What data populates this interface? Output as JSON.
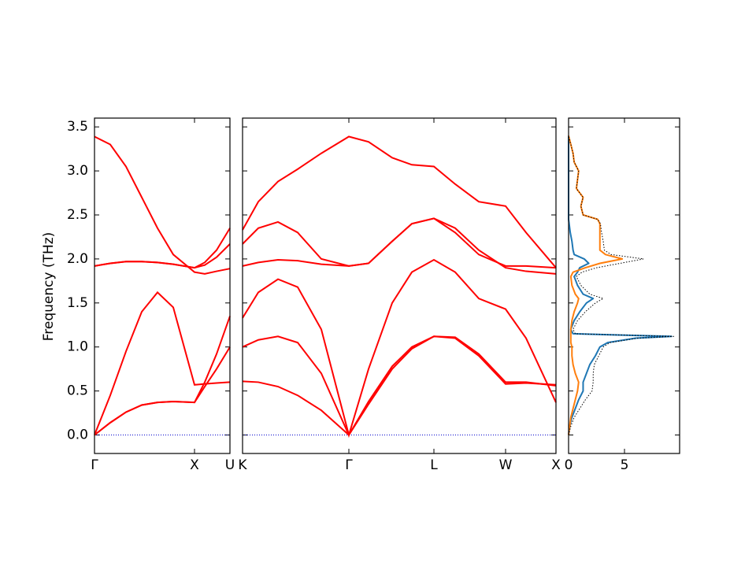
{
  "chart_data": [
    {
      "type": "line",
      "ylabel": "Frequency (THz)",
      "x": [
        0,
        20,
        40,
        60,
        80,
        100,
        127,
        140,
        155,
        172
      ],
      "xlim": [
        0,
        172
      ],
      "xticks": [
        {
          "value": 0,
          "label": "Γ"
        },
        {
          "value": 127,
          "label": "X"
        },
        {
          "value": 172,
          "label": "U"
        }
      ],
      "ylim": [
        -0.21,
        3.6
      ],
      "yticks": [
        {
          "value": 0,
          "label": "0.0"
        },
        0.5,
        {
          "value": 1,
          "label": "1.0"
        },
        1.5,
        {
          "value": 2,
          "label": "2.0"
        },
        2.5,
        {
          "value": 3,
          "label": "3.0"
        },
        3.5
      ],
      "series": [
        {
          "color": "#0000cc",
          "linestyle": "dotted",
          "values": [
            0,
            0,
            0,
            0,
            0,
            0,
            0,
            0,
            0,
            0
          ]
        },
        {
          "color": "#ff0000",
          "values": [
            0,
            0.14,
            0.26,
            0.34,
            0.37,
            0.38,
            0.37,
            0.6,
            0.92,
            1.35
          ]
        },
        {
          "color": "#ff0000",
          "values": [
            0,
            0.14,
            0.26,
            0.34,
            0.37,
            0.38,
            0.37,
            0.55,
            0.75,
            1.0
          ]
        },
        {
          "color": "#ff0000",
          "values": [
            0,
            0.45,
            0.95,
            1.4,
            1.62,
            1.45,
            0.57,
            0.58,
            0.59,
            0.6
          ]
        },
        {
          "color": "#ff0000",
          "values": [
            1.92,
            1.95,
            1.97,
            1.97,
            1.96,
            1.94,
            1.9,
            1.96,
            2.1,
            2.35
          ]
        },
        {
          "color": "#ff0000",
          "values": [
            1.92,
            1.95,
            1.97,
            1.97,
            1.96,
            1.94,
            1.9,
            1.93,
            2.02,
            2.17
          ]
        },
        {
          "color": "#ff0000",
          "values": [
            3.39,
            3.3,
            3.05,
            2.7,
            2.35,
            2.05,
            1.85,
            1.83,
            1.86,
            1.89
          ]
        }
      ]
    },
    {
      "type": "line",
      "x": [
        0,
        20,
        45,
        70,
        100,
        135,
        160,
        190,
        215,
        243,
        270,
        300,
        334,
        360,
        398
      ],
      "xlim": [
        0,
        398
      ],
      "xticks": [
        {
          "value": 0,
          "label": "K"
        },
        {
          "value": 135,
          "label": "Γ"
        },
        {
          "value": 243,
          "label": "L"
        },
        {
          "value": 334,
          "label": "W"
        },
        {
          "value": 398,
          "label": "X"
        }
      ],
      "series": [
        {
          "color": "#0000cc",
          "linestyle": "dotted",
          "values": [
            0,
            0,
            0,
            0,
            0,
            0,
            0,
            0,
            0,
            0,
            0,
            0,
            0,
            0,
            0
          ]
        },
        {
          "color": "#ff0000",
          "values": [
            0.61,
            0.6,
            0.55,
            0.45,
            0.28,
            0,
            0.35,
            0.75,
            0.98,
            1.12,
            1.1,
            0.9,
            0.58,
            0.59,
            0.57
          ]
        },
        {
          "color": "#ff0000",
          "values": [
            1.0,
            1.08,
            1.12,
            1.05,
            0.7,
            0,
            0.38,
            0.78,
            1.0,
            1.12,
            1.11,
            0.92,
            0.6,
            0.6,
            0.56
          ]
        },
        {
          "color": "#ff0000",
          "values": [
            1.33,
            1.62,
            1.77,
            1.68,
            1.2,
            0,
            0.75,
            1.5,
            1.85,
            1.99,
            1.85,
            1.55,
            1.43,
            1.1,
            0.37
          ]
        },
        {
          "color": "#ff0000",
          "values": [
            1.92,
            1.96,
            1.99,
            1.98,
            1.94,
            1.92,
            1.95,
            2.2,
            2.4,
            2.46,
            2.3,
            2.05,
            1.92,
            1.92,
            1.9
          ]
        },
        {
          "color": "#ff0000",
          "values": [
            2.17,
            2.35,
            2.42,
            2.3,
            2.0,
            1.92,
            1.95,
            2.2,
            2.4,
            2.46,
            2.35,
            2.1,
            1.9,
            1.86,
            1.83
          ]
        },
        {
          "color": "#ff0000",
          "values": [
            2.33,
            2.65,
            2.88,
            3.02,
            3.2,
            3.39,
            3.33,
            3.15,
            3.07,
            3.05,
            2.85,
            2.65,
            2.6,
            2.3,
            1.9
          ]
        }
      ]
    },
    {
      "type": "dos",
      "frequencies": [
        0,
        0.1,
        0.2,
        0.3,
        0.4,
        0.5,
        0.6,
        0.7,
        0.8,
        0.9,
        1.0,
        1.05,
        1.1,
        1.12,
        1.15,
        1.2,
        1.3,
        1.4,
        1.5,
        1.55,
        1.6,
        1.7,
        1.8,
        1.85,
        1.9,
        1.95,
        2.0,
        2.05,
        2.1,
        2.2,
        2.3,
        2.4,
        2.45,
        2.5,
        2.6,
        2.7,
        2.8,
        2.9,
        3.0,
        3.1,
        3.2,
        3.3,
        3.4
      ],
      "xlim": [
        0,
        9.93
      ],
      "xticks": [
        0,
        5
      ],
      "series": [
        {
          "color": "#1f77b4",
          "values": [
            0,
            0.1,
            0.3,
            0.6,
            0.9,
            1.3,
            1.3,
            1.6,
            1.9,
            2.4,
            2.8,
            3.5,
            6,
            9.2,
            0.4,
            0.2,
            0.5,
            1.0,
            1.6,
            2.2,
            1.3,
            0.8,
            0.5,
            0.8,
            1.0,
            1.8,
            1.4,
            0.5,
            0.4,
            0.3,
            0.15,
            0.05,
            0,
            0,
            0,
            0,
            0,
            0,
            0,
            0,
            0,
            0,
            0
          ]
        },
        {
          "color": "#ff7f0e",
          "values": [
            0,
            0.1,
            0.2,
            0.4,
            0.6,
            0.8,
            0.9,
            0.6,
            0.4,
            0.3,
            0.3,
            0.2,
            0.2,
            0.2,
            0.2,
            0.2,
            0.3,
            0.5,
            0.8,
            0.9,
            0.6,
            0.3,
            0.2,
            0.4,
            1.5,
            2.8,
            4.8,
            3.3,
            2.8,
            2.8,
            2.8,
            2.8,
            2.6,
            1.3,
            1.1,
            1.3,
            0.7,
            0.8,
            0.9,
            0.5,
            0.4,
            0.2,
            0
          ]
        },
        {
          "color": "#000000",
          "linestyle": "dotted",
          "values": [
            0,
            0.2,
            0.5,
            1.0,
            1.5,
            2.1,
            2.2,
            2.2,
            2.3,
            2.7,
            3.1,
            3.7,
            6.2,
            9.4,
            0.6,
            0.4,
            0.8,
            1.5,
            2.4,
            3.1,
            1.9,
            1.1,
            0.7,
            1.2,
            2.5,
            4.6,
            6.7,
            3.8,
            3.2,
            3.1,
            2.95,
            2.85,
            2.6,
            1.3,
            1.1,
            1.3,
            0.7,
            0.8,
            0.9,
            0.5,
            0.4,
            0.2,
            0
          ]
        }
      ]
    }
  ]
}
